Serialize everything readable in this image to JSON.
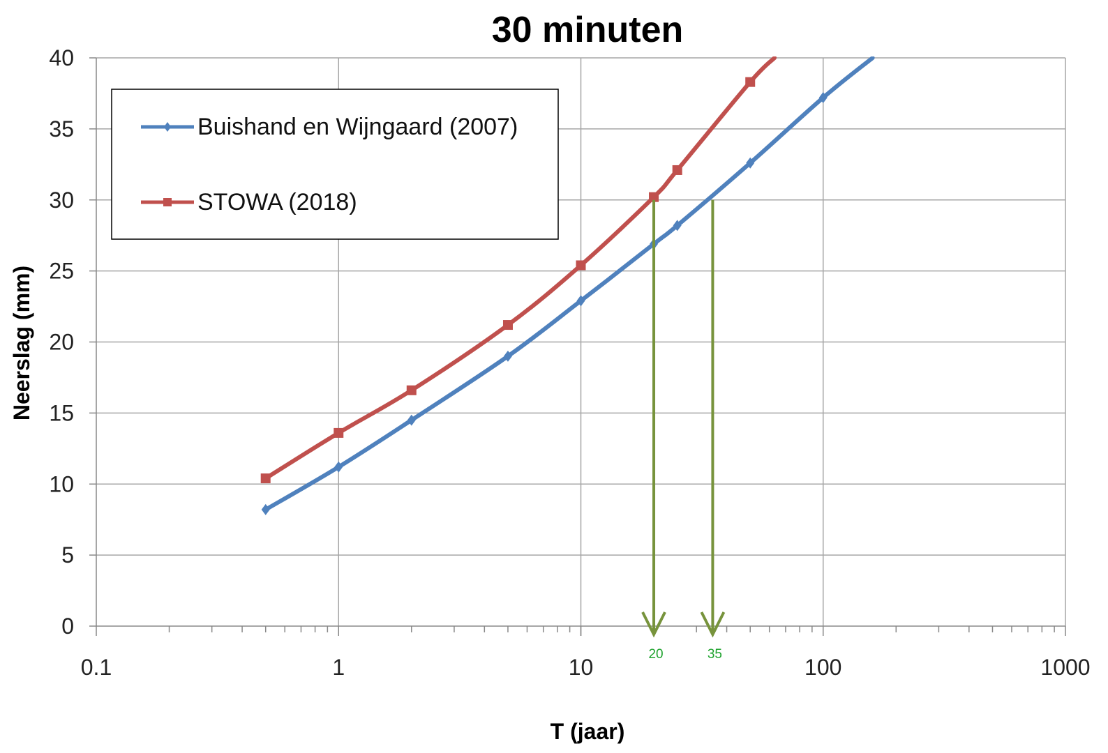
{
  "chart_data": {
    "type": "line",
    "title": "30 minuten",
    "xlabel": "T (jaar)",
    "ylabel": "Neerslag (mm)",
    "x_scale": "log",
    "xlim": [
      0.1,
      1000
    ],
    "ylim": [
      0,
      40
    ],
    "x_ticks": [
      {
        "value": 0.1,
        "label": "0.1"
      },
      {
        "value": 1,
        "label": "1"
      },
      {
        "value": 10,
        "label": "10"
      },
      {
        "value": 100,
        "label": "100"
      },
      {
        "value": 1000,
        "label": "1000"
      }
    ],
    "y_ticks": [
      {
        "value": 0,
        "label": "0"
      },
      {
        "value": 5,
        "label": "5"
      },
      {
        "value": 10,
        "label": "10"
      },
      {
        "value": 15,
        "label": "15"
      },
      {
        "value": 20,
        "label": "20"
      },
      {
        "value": 25,
        "label": "25"
      },
      {
        "value": 30,
        "label": "30"
      },
      {
        "value": 35,
        "label": "35"
      },
      {
        "value": 40,
        "label": "40"
      }
    ],
    "grid": true,
    "legend_position": "top-left",
    "series": [
      {
        "name": "Buishand en Wijngaard (2007)",
        "color": "#4f81bd",
        "marker": "diamond",
        "points": [
          {
            "x": 0.5,
            "y": 8.2
          },
          {
            "x": 1,
            "y": 11.2
          },
          {
            "x": 2,
            "y": 14.5
          },
          {
            "x": 5,
            "y": 19.0
          },
          {
            "x": 10,
            "y": 22.9
          },
          {
            "x": 20,
            "y": 26.9
          },
          {
            "x": 25,
            "y": 28.2
          },
          {
            "x": 50,
            "y": 32.6
          },
          {
            "x": 100,
            "y": 37.2
          },
          {
            "x": 160,
            "y": 40.0
          }
        ]
      },
      {
        "name": "STOWA (2018)",
        "color": "#c0504d",
        "marker": "square",
        "points": [
          {
            "x": 0.5,
            "y": 10.4
          },
          {
            "x": 1,
            "y": 13.6
          },
          {
            "x": 2,
            "y": 16.6
          },
          {
            "x": 5,
            "y": 21.2
          },
          {
            "x": 10,
            "y": 25.4
          },
          {
            "x": 20,
            "y": 30.2
          },
          {
            "x": 25,
            "y": 32.1
          },
          {
            "x": 50,
            "y": 38.3
          },
          {
            "x": 63,
            "y": 40.0
          }
        ]
      }
    ],
    "annotations": [
      {
        "type": "arrow",
        "x": 20,
        "y_from": 30,
        "y_to": 0,
        "label": "20",
        "color": "#77933c",
        "label_color": "#1fa32e"
      },
      {
        "type": "arrow",
        "x": 35,
        "y_from": 30,
        "y_to": 0,
        "label": "35",
        "color": "#77933c",
        "label_color": "#1fa32e"
      }
    ]
  }
}
